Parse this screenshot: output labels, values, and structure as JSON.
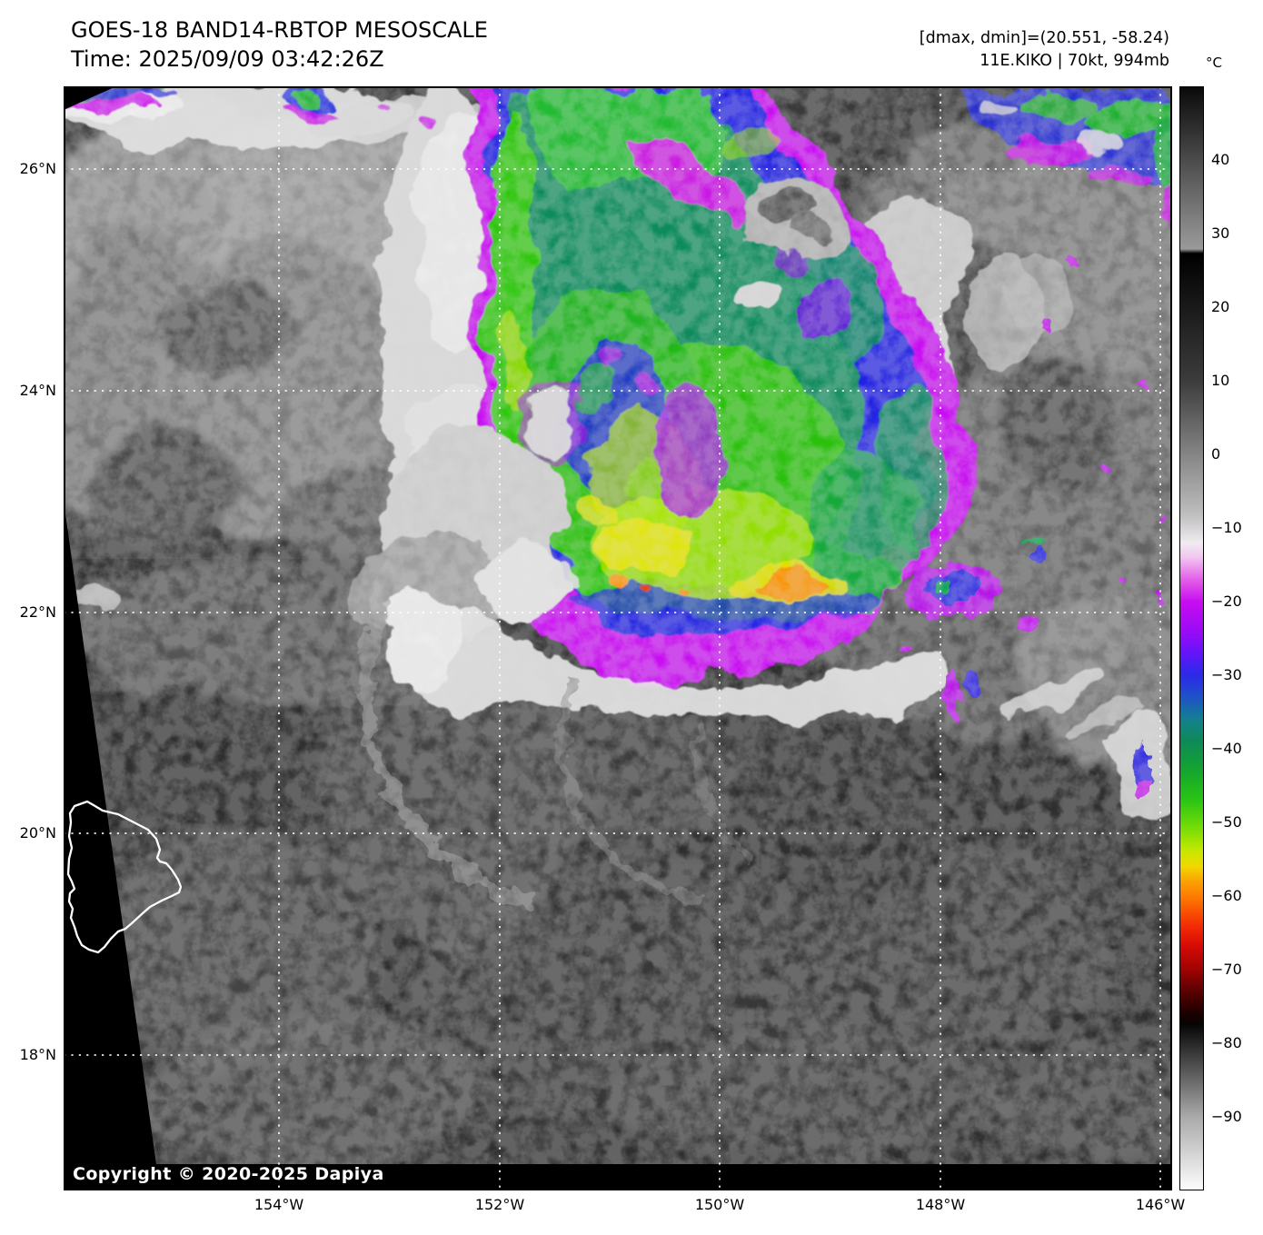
{
  "header": {
    "title": "GOES-18 BAND14-RBTOP MESOSCALE",
    "time": "Time: 2025/09/09 03:42:26Z",
    "range_note": "[dmax, dmin]=(20.551, -58.24)",
    "storm_note": "11E.KIKO | 70kt, 994mb"
  },
  "axes": {
    "lat": [
      "26°N",
      "24°N",
      "22°N",
      "20°N",
      "18°N"
    ],
    "lon": [
      "154°W",
      "152°W",
      "150°W",
      "148°W",
      "146°W"
    ]
  },
  "map": {
    "copyright": "Copyright © 2020-2025 Dapiya"
  },
  "colorbar": {
    "unit": "°C",
    "vmax": 50,
    "vmin": -100,
    "ticks": [
      {
        "value": 40,
        "label": "40"
      },
      {
        "value": 30,
        "label": "30"
      },
      {
        "value": 20,
        "label": "20"
      },
      {
        "value": 10,
        "label": "10"
      },
      {
        "value": 0,
        "label": "0"
      },
      {
        "value": -10,
        "label": "−10"
      },
      {
        "value": -20,
        "label": "−20"
      },
      {
        "value": -30,
        "label": "−30"
      },
      {
        "value": -40,
        "label": "−40"
      },
      {
        "value": -50,
        "label": "−50"
      },
      {
        "value": -60,
        "label": "−60"
      },
      {
        "value": -70,
        "label": "−70"
      },
      {
        "value": -80,
        "label": "−80"
      },
      {
        "value": -90,
        "label": "−90"
      }
    ],
    "stops": [
      {
        "value": 50,
        "color": "#0a0a0a"
      },
      {
        "value": 28,
        "color": "#9a9a9a"
      },
      {
        "value": 27.4,
        "color": "#000000"
      },
      {
        "value": 10,
        "color": "#3c3c3c"
      },
      {
        "value": 0,
        "color": "#858585"
      },
      {
        "value": -8,
        "color": "#bdbdbd"
      },
      {
        "value": -12,
        "color": "#efecef"
      },
      {
        "value": -14,
        "color": "#f2c4f0"
      },
      {
        "value": -17,
        "color": "#e25fe8"
      },
      {
        "value": -20,
        "color": "#c80df0"
      },
      {
        "value": -24,
        "color": "#9a0bf5"
      },
      {
        "value": -27,
        "color": "#6414fa"
      },
      {
        "value": -30,
        "color": "#2a2ae8"
      },
      {
        "value": -33,
        "color": "#1f52c8"
      },
      {
        "value": -36,
        "color": "#13808f"
      },
      {
        "value": -39,
        "color": "#0e8a57"
      },
      {
        "value": -43,
        "color": "#14a52e"
      },
      {
        "value": -47,
        "color": "#2bc414"
      },
      {
        "value": -51,
        "color": "#7ade06"
      },
      {
        "value": -54,
        "color": "#c8e800"
      },
      {
        "value": -56,
        "color": "#f0d800"
      },
      {
        "value": -58,
        "color": "#fba302"
      },
      {
        "value": -61,
        "color": "#fc6a01"
      },
      {
        "value": -64,
        "color": "#f52d05"
      },
      {
        "value": -67,
        "color": "#d40a03"
      },
      {
        "value": -70,
        "color": "#a00303"
      },
      {
        "value": -73,
        "color": "#5c0101"
      },
      {
        "value": -76,
        "color": "#1c0000"
      },
      {
        "value": -77.5,
        "color": "#050505"
      },
      {
        "value": -90,
        "color": "#a8a8a8"
      },
      {
        "value": -100,
        "color": "#fdfdfd"
      }
    ]
  }
}
